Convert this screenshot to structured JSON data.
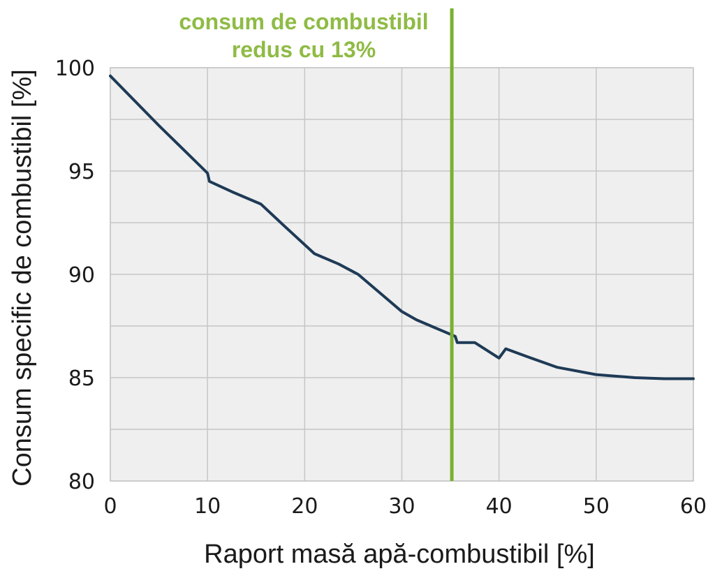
{
  "chart_data": {
    "type": "line",
    "xlabel": "Raport masă apă-combustibil [%]",
    "ylabel": "Consum specific de combustibil [%]",
    "xlim": [
      0,
      60
    ],
    "ylim": [
      80,
      100
    ],
    "xticks": [
      0,
      10,
      20,
      30,
      40,
      50,
      60
    ],
    "yticks": [
      80,
      85,
      90,
      95,
      100
    ],
    "grid": true,
    "series": [
      {
        "color": "#1e3a56",
        "x": [
          0,
          5,
          10,
          10.2,
          12.5,
          15.5,
          18,
          21,
          23.5,
          25.5,
          28,
          30,
          31.5,
          33.5,
          35.5,
          35.7,
          36.5,
          37.5,
          38.5,
          40,
          40.7,
          43,
          46,
          50,
          54,
          57,
          60
        ],
        "y": [
          99.6,
          97.2,
          94.9,
          94.5,
          94.0,
          93.4,
          92.3,
          91.0,
          90.5,
          90.0,
          89.0,
          88.2,
          87.8,
          87.4,
          87.0,
          86.7,
          86.7,
          86.7,
          86.4,
          85.95,
          86.4,
          86.0,
          85.5,
          85.15,
          85.0,
          84.95,
          84.95
        ]
      }
    ],
    "vline": {
      "x": 35,
      "color": "#7ab030"
    },
    "annotation": {
      "lines": [
        "consum de combustibil",
        "redus cu 13%"
      ],
      "color": "#8fbb45"
    }
  }
}
